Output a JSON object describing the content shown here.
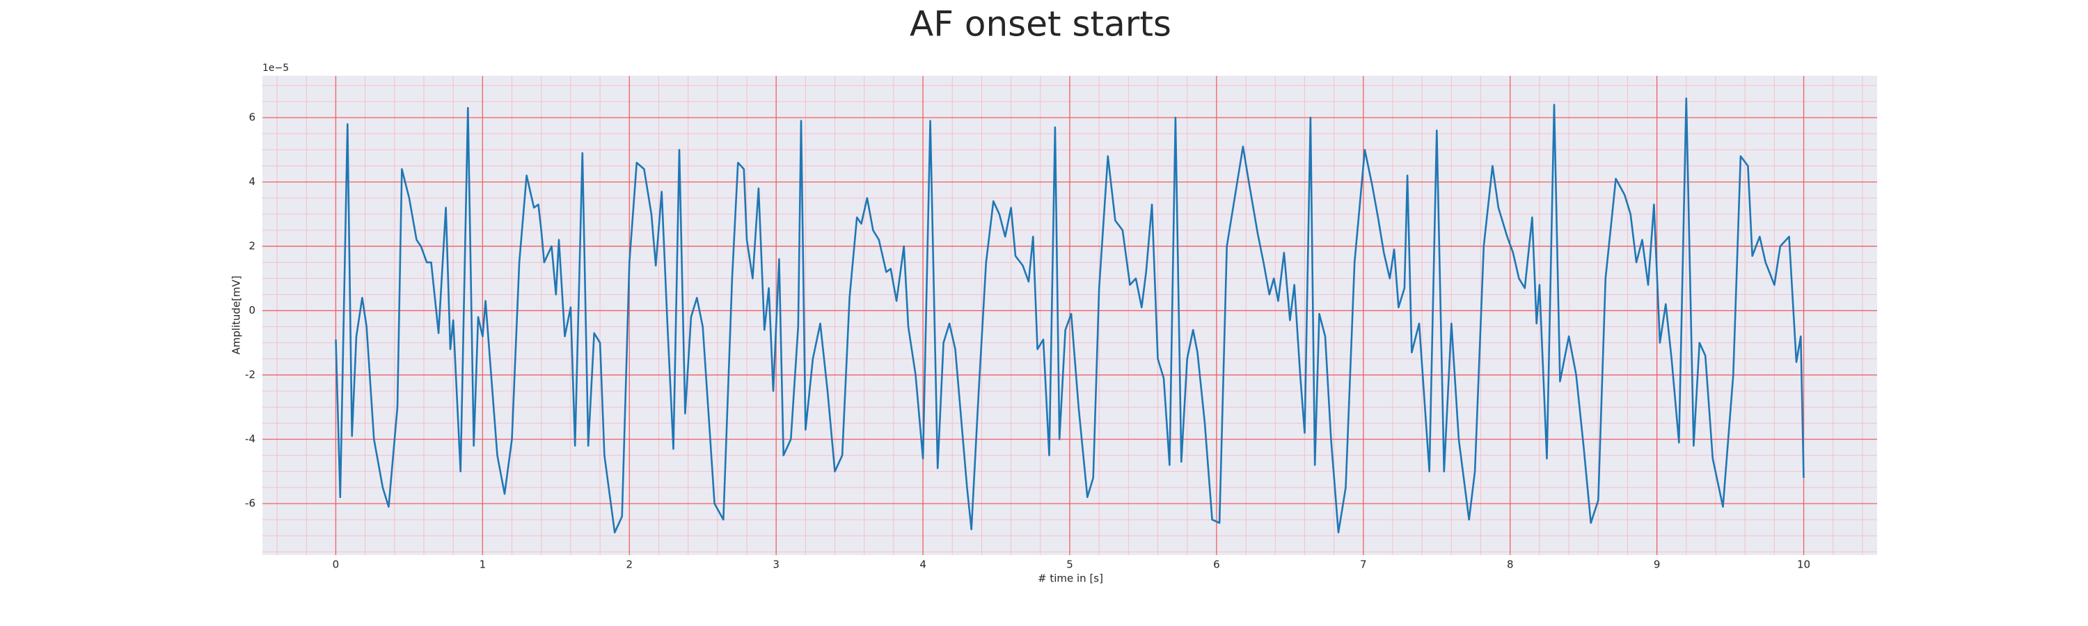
{
  "chart_data": {
    "type": "line",
    "title": "AF onset starts",
    "x_label": "# time in [s]",
    "y_label": "Amplitude[mV]",
    "y_offset_text": "1e−5",
    "color": "#1f77b4",
    "grid": true,
    "minor_grid": true,
    "background": "#eaeaf2",
    "grid_color": "#f06060",
    "minor_grid_color": "#f5c0c8",
    "xlim": [
      -0.5,
      10.5
    ],
    "ylim": [
      -7.6,
      7.3
    ],
    "xticks": [
      0,
      1,
      2,
      3,
      4,
      5,
      6,
      7,
      8,
      9,
      10
    ],
    "yticks": [
      -6,
      -4,
      -2,
      0,
      2,
      4,
      6
    ],
    "x": [
      0.0,
      0.03,
      0.08,
      0.11,
      0.14,
      0.18,
      0.21,
      0.26,
      0.32,
      0.36,
      0.42,
      0.45,
      0.5,
      0.55,
      0.58,
      0.62,
      0.65,
      0.7,
      0.75,
      0.78,
      0.8,
      0.85,
      0.9,
      0.94,
      0.97,
      1.0,
      1.02,
      1.05,
      1.1,
      1.15,
      1.2,
      1.25,
      1.3,
      1.35,
      1.38,
      1.4,
      1.42,
      1.47,
      1.5,
      1.52,
      1.56,
      1.6,
      1.63,
      1.68,
      1.72,
      1.76,
      1.8,
      1.83,
      1.9,
      1.95,
      2.0,
      2.05,
      2.1,
      2.15,
      2.18,
      2.22,
      2.26,
      2.3,
      2.34,
      2.38,
      2.42,
      2.46,
      2.5,
      2.58,
      2.64,
      2.7,
      2.74,
      2.78,
      2.8,
      2.84,
      2.88,
      2.92,
      2.95,
      2.98,
      3.02,
      3.05,
      3.1,
      3.15,
      3.17,
      3.2,
      3.25,
      3.3,
      3.35,
      3.4,
      3.45,
      3.5,
      3.55,
      3.58,
      3.62,
      3.66,
      3.7,
      3.75,
      3.78,
      3.82,
      3.87,
      3.9,
      3.95,
      4.0,
      4.05,
      4.1,
      4.14,
      4.18,
      4.22,
      4.3,
      4.33,
      4.38,
      4.43,
      4.48,
      4.52,
      4.56,
      4.6,
      4.63,
      4.68,
      4.72,
      4.75,
      4.78,
      4.82,
      4.86,
      4.9,
      4.93,
      4.97,
      5.01,
      5.06,
      5.12,
      5.16,
      5.2,
      5.26,
      5.31,
      5.36,
      5.41,
      5.45,
      5.49,
      5.52,
      5.56,
      5.6,
      5.64,
      5.68,
      5.72,
      5.76,
      5.8,
      5.84,
      5.87,
      5.92,
      5.97,
      6.02,
      6.07,
      6.18,
      6.22,
      6.28,
      6.32,
      6.36,
      6.39,
      6.42,
      6.46,
      6.5,
      6.53,
      6.57,
      6.6,
      6.64,
      6.67,
      6.7,
      6.74,
      6.78,
      6.83,
      6.88,
      6.94,
      7.01,
      7.06,
      7.1,
      7.14,
      7.18,
      7.21,
      7.24,
      7.28,
      7.3,
      7.33,
      7.38,
      7.45,
      7.5,
      7.55,
      7.6,
      7.65,
      7.72,
      7.76,
      7.82,
      7.88,
      7.92,
      7.98,
      8.02,
      8.06,
      8.1,
      8.15,
      8.18,
      8.2,
      8.25,
      8.3,
      8.34,
      8.4,
      8.45,
      8.5,
      8.55,
      8.6,
      8.65,
      8.72,
      8.78,
      8.82,
      8.86,
      8.9,
      8.94,
      8.98,
      9.02,
      9.06,
      9.1,
      9.15,
      9.2,
      9.25,
      9.29,
      9.33,
      9.38,
      9.45,
      9.52,
      9.57,
      9.62,
      9.65,
      9.7,
      9.74,
      9.8,
      9.84,
      9.9,
      9.95,
      9.98,
      10.0
    ],
    "values": [
      -0.9,
      -5.8,
      5.8,
      -3.9,
      -0.8,
      0.4,
      -0.5,
      -4.0,
      -5.5,
      -6.1,
      -3,
      4.4,
      3.5,
      2.2,
      2.0,
      1.5,
      1.5,
      -0.7,
      3.2,
      -1.2,
      -0.3,
      -5.0,
      6.3,
      -4.2,
      -0.2,
      -0.8,
      0.3,
      -1.5,
      -4.5,
      -5.7,
      -4.0,
      1.5,
      4.2,
      3.2,
      3.3,
      2.5,
      1.5,
      2.0,
      0.5,
      2.2,
      -0.8,
      0.1,
      -4.2,
      4.9,
      -4.2,
      -0.7,
      -1.0,
      -4.5,
      -6.9,
      -6.4,
      1.5,
      4.6,
      4.4,
      3.0,
      1.4,
      3.7,
      -0.5,
      -4.3,
      5.0,
      -3.2,
      -0.2,
      0.4,
      -0.5,
      -6.0,
      -6.5,
      1.0,
      4.6,
      4.4,
      2.2,
      1.0,
      3.8,
      -0.6,
      0.7,
      -2.5,
      1.6,
      -4.5,
      -4,
      -0.5,
      5.9,
      -3.7,
      -1.5,
      -0.4,
      -2.5,
      -5.0,
      -4.5,
      0.4,
      2.9,
      2.7,
      3.5,
      2.5,
      2.2,
      1.2,
      1.3,
      0.3,
      2.0,
      -0.5,
      -2,
      -4.6,
      5.9,
      -4.9,
      -1.0,
      -0.4,
      -1.2,
      -5.5,
      -6.8,
      -2.5,
      1.5,
      3.4,
      3.0,
      2.3,
      3.2,
      1.7,
      1.4,
      0.9,
      2.3,
      -1.2,
      -0.9,
      -4.5,
      5.7,
      -4,
      -0.6,
      -0.1,
      -3,
      -5.8,
      -5.2,
      0.7,
      4.8,
      2.8,
      2.5,
      0.8,
      1.0,
      0.1,
      1.2,
      3.3,
      -1.5,
      -2.1,
      -4.8,
      6.0,
      -4.7,
      -1.5,
      -0.6,
      -1.3,
      -3.5,
      -6.5,
      -6.6,
      2.0,
      5.1,
      4.0,
      2.4,
      1.5,
      0.5,
      1.0,
      0.3,
      1.8,
      -0.3,
      0.8,
      -2,
      -3.8,
      6.0,
      -4.8,
      -0.1,
      -0.8,
      -4.0,
      -6.9,
      -5.5,
      1.5,
      5.0,
      3.9,
      2.9,
      1.8,
      1.0,
      1.9,
      0.1,
      0.7,
      4.2,
      -1.3,
      -0.4,
      -5.0,
      5.6,
      -5.0,
      -0.4,
      -4.0,
      -6.5,
      -5.0,
      2.0,
      4.5,
      3.2,
      2.3,
      1.8,
      1.0,
      0.7,
      2.9,
      -0.4,
      0.8,
      -4.6,
      6.4,
      -2.2,
      -0.8,
      -2,
      -4.2,
      -6.6,
      -5.9,
      1.0,
      4.1,
      3.6,
      3.0,
      1.5,
      2.2,
      0.8,
      3.3,
      -1.0,
      0.2,
      -1.5,
      -4.1,
      6.6,
      -4.2,
      -1.0,
      -1.4,
      -4.6,
      -6.1,
      -2,
      4.8,
      4.5,
      1.7,
      2.3,
      1.5,
      0.8,
      2.0,
      2.3,
      -1.6,
      -0.8,
      -5.2
    ]
  }
}
